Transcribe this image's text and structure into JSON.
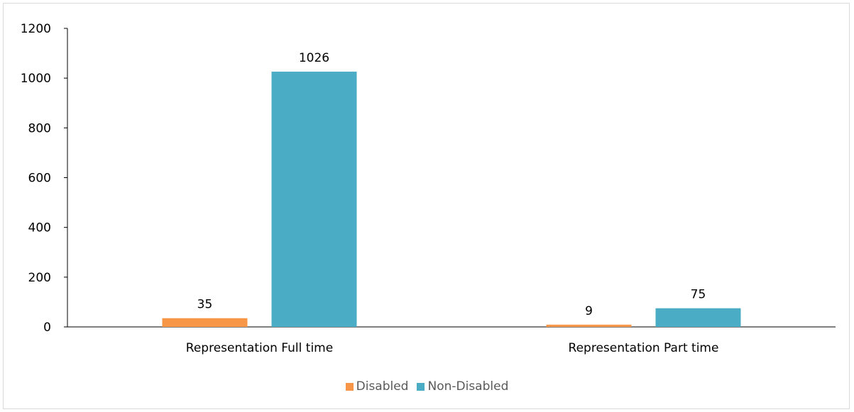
{
  "chart_data": {
    "type": "bar",
    "title": "",
    "xlabel": "",
    "ylabel": "",
    "categories": [
      "Representation Full time",
      "Representation Part time"
    ],
    "series": [
      {
        "name": "Disabled",
        "values": [
          35,
          9
        ],
        "color": "#f79646"
      },
      {
        "name": "Non-Disabled",
        "values": [
          1026,
          75
        ],
        "color": "#4bacc6"
      }
    ],
    "ylim": [
      0,
      1200
    ],
    "yticks": [
      0,
      200,
      400,
      600,
      800,
      1000,
      1200
    ],
    "grid": false,
    "legend_position": "bottom"
  }
}
